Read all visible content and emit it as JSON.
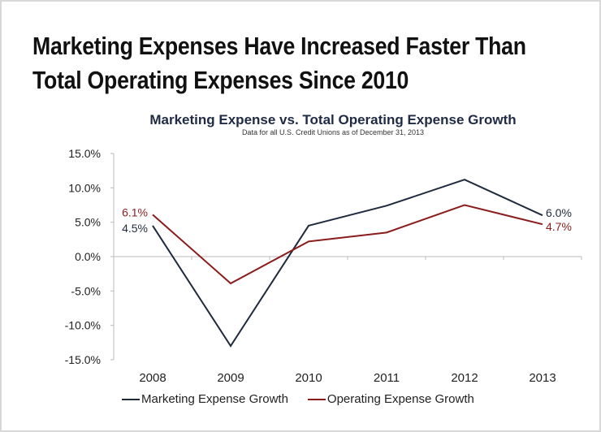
{
  "page_title": [
    "Marketing Expenses Have Increased Faster Than",
    "Total Operating Expenses Since 2010"
  ],
  "chart_data": {
    "type": "line",
    "title": "Marketing Expense vs. Total Operating Expense Growth",
    "subtitle": "Data for all U.S. Credit Unions as of December 31, 2013",
    "categories": [
      "2008",
      "2009",
      "2010",
      "2011",
      "2012",
      "2013"
    ],
    "ylim": [
      -15,
      15
    ],
    "yticks": [
      "15.0%",
      "10.0%",
      "5.0%",
      "0.0%",
      "-5.0%",
      "-10.0%",
      "-15.0%"
    ],
    "ytick_values": [
      15,
      10,
      5,
      0,
      -5,
      -10,
      -15
    ],
    "grid": false,
    "legend": "bottom",
    "series": [
      {
        "name": "Marketing Expense Growth",
        "color": "#1f2a3c",
        "values": [
          4.5,
          -13.0,
          4.5,
          7.4,
          11.2,
          6.0
        ],
        "labels": {
          "first": "4.5%",
          "last": "6.0%"
        }
      },
      {
        "name": "Operating Expense Growth",
        "color": "#8b1c1c",
        "values": [
          6.1,
          -3.9,
          2.2,
          3.5,
          7.5,
          4.7
        ],
        "labels": {
          "first": "6.1%",
          "last": "4.7%"
        }
      }
    ]
  }
}
